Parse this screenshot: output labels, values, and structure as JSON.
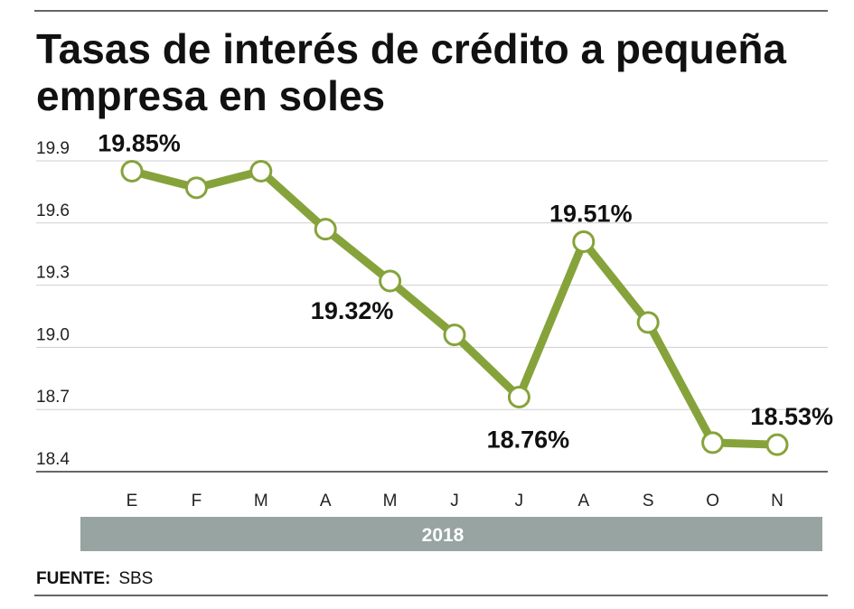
{
  "chart_data": {
    "type": "line",
    "title_lines": [
      "Tasas de interés de crédito a pequeña",
      "empresa en soles"
    ],
    "categories": [
      "E",
      "F",
      "M",
      "A",
      "M",
      "J",
      "J",
      "A",
      "S",
      "O",
      "N"
    ],
    "values": [
      19.85,
      19.77,
      19.85,
      19.57,
      19.32,
      19.06,
      18.76,
      19.51,
      19.12,
      18.54,
      18.53
    ],
    "ylim": [
      18.4,
      19.9
    ],
    "yticks": [
      19.9,
      19.6,
      19.3,
      19.0,
      18.7,
      18.4
    ],
    "ytick_labels": [
      "19.9",
      "19.6",
      "19.3",
      "19.0",
      "18.7",
      "18.4"
    ],
    "grid": true,
    "xgroup_label": "2018",
    "annotations": [
      {
        "index": 0,
        "text": "19.85%",
        "position": "above"
      },
      {
        "index": 4,
        "text": "19.32%",
        "position": "below-left"
      },
      {
        "index": 6,
        "text": "18.76%",
        "position": "below"
      },
      {
        "index": 7,
        "text": "19.51%",
        "position": "above"
      },
      {
        "index": 10,
        "text": "18.53%",
        "position": "above"
      }
    ],
    "source_label": "FUENTE:",
    "source_value": "SBS",
    "colors": {
      "line": "#86a33b",
      "marker_fill": "#ffffff",
      "grid": "#cfcfcf",
      "year_band": "#97a4a1",
      "text": "#111111"
    }
  }
}
